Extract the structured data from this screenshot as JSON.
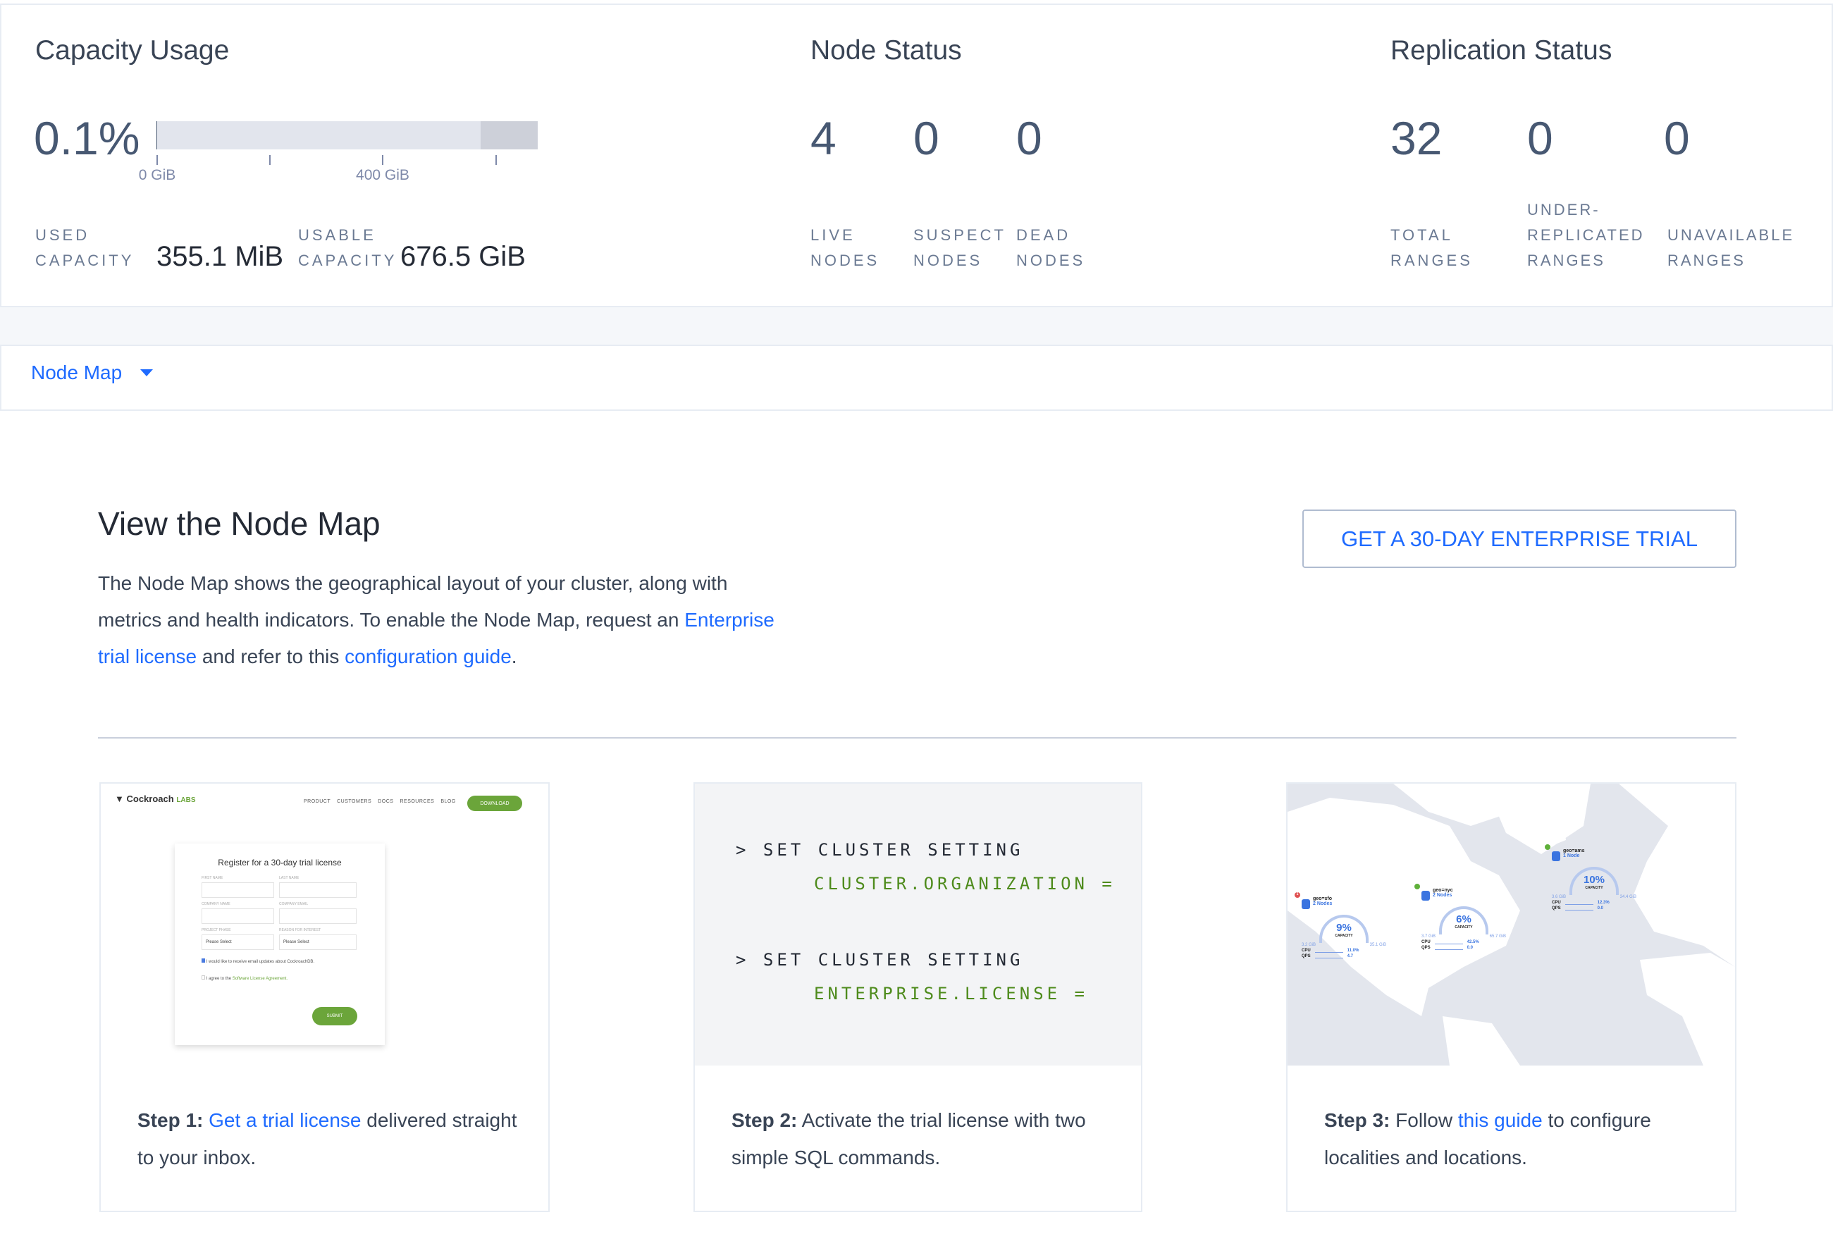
{
  "capacity": {
    "title": "Capacity Usage",
    "percent": "0.1%",
    "usage_fraction": 0.001,
    "ticks": [
      "0 GiB",
      "400 GiB"
    ],
    "used_label_1": "USED",
    "used_label_2": "CAPACITY",
    "used_value": "355.1 MiB",
    "usable_label_1": "USABLE",
    "usable_label_2": "CAPACITY",
    "usable_value": "676.5 GiB"
  },
  "node_status": {
    "title": "Node Status",
    "items": [
      {
        "value": "4",
        "l1": "LIVE",
        "l2": "NODES"
      },
      {
        "value": "0",
        "l1": "SUSPECT",
        "l2": "NODES"
      },
      {
        "value": "0",
        "l1": "DEAD",
        "l2": "NODES"
      }
    ]
  },
  "replication": {
    "title": "Replication Status",
    "items": [
      {
        "value": "32",
        "l0": "",
        "l1": "TOTAL",
        "l2": "RANGES"
      },
      {
        "value": "0",
        "l0": "UNDER-",
        "l1": "REPLICATED",
        "l2": "RANGES"
      },
      {
        "value": "0",
        "l0": "",
        "l1": "UNAVAILABLE",
        "l2": "RANGES"
      }
    ]
  },
  "dropdown": {
    "label": "Node Map"
  },
  "main": {
    "title": "View the Node Map",
    "p1": "The Node Map shows the geographical layout of your cluster, along with",
    "p2a": "metrics and health indicators. To enable the Node Map, request an ",
    "link1a": "Enterprise",
    "link1b": "trial license",
    "p3b": " and refer to this ",
    "link2": "configuration guide",
    "p3c": ".",
    "trial_button": "GET A 30-DAY ENTERPRISE TRIAL"
  },
  "steps": [
    {
      "bold": "Step 1:",
      "link": "Get a trial license",
      "rest1": " delivered straight",
      "rest2": "to your inbox."
    },
    {
      "bold": "Step 2:",
      "rest1": " Activate the trial license with two",
      "rest2": "simple SQL commands."
    },
    {
      "bold": "Step 3:",
      "pre": " Follow ",
      "link": "this guide",
      "rest1": " to configure",
      "rest2": "localities and locations."
    }
  ],
  "step1_image": {
    "logo": "Cockroach",
    "logo_suffix": "LABS",
    "nav": [
      "PRODUCT",
      "CUSTOMERS",
      "DOCS",
      "RESOURCES",
      "BLOG"
    ],
    "download": "DOWNLOAD",
    "form_title": "Register for a 30-day trial license",
    "fields": [
      "FIRST NAME",
      "LAST NAME",
      "COMPANY NAME",
      "COMPANY EMAIL",
      "PROJECT PHASE",
      "REASON FOR INTEREST"
    ],
    "select": "Please Select",
    "check1": "I would like to receive email updates about CockroachDB.",
    "check2a": "I agree to the ",
    "check2b": "Software License Agreement.",
    "submit": "SUBMIT"
  },
  "step2_code": {
    "l1": "> SET CLUSTER SETTING",
    "l2": "CLUSTER.ORGANIZATION =",
    "l3": "> SET CLUSTER SETTING",
    "l4": "ENTERPRISE.LICENSE ="
  },
  "step3_map": {
    "regions": [
      {
        "name": "geo=sfo",
        "nodes": "2 Nodes",
        "pct": "9%",
        "cap": "CAPACITY",
        "used": "3.2 GiB",
        "total": "35.1 GiB",
        "cpu": "11.0%",
        "qps": "4.7",
        "alert": "1"
      },
      {
        "name": "geo=nyc",
        "nodes": "2 Nodes",
        "pct": "6%",
        "cap": "CAPACITY",
        "used": "3.7 GiB",
        "total": "65.7 GiB",
        "cpu": "42.5%",
        "qps": "0.0"
      },
      {
        "name": "geo=ams",
        "nodes": "1 Node",
        "pct": "10%",
        "cap": "CAPACITY",
        "used": "3.6 GiB",
        "total": "34.4 GiB",
        "cpu": "12.3%",
        "qps": "0.0"
      }
    ],
    "cpu_label": "CPU",
    "qps_label": "QPS"
  },
  "colors": {
    "link": "#1f6bff",
    "green": "#4e8b1c",
    "text": "#394455"
  }
}
